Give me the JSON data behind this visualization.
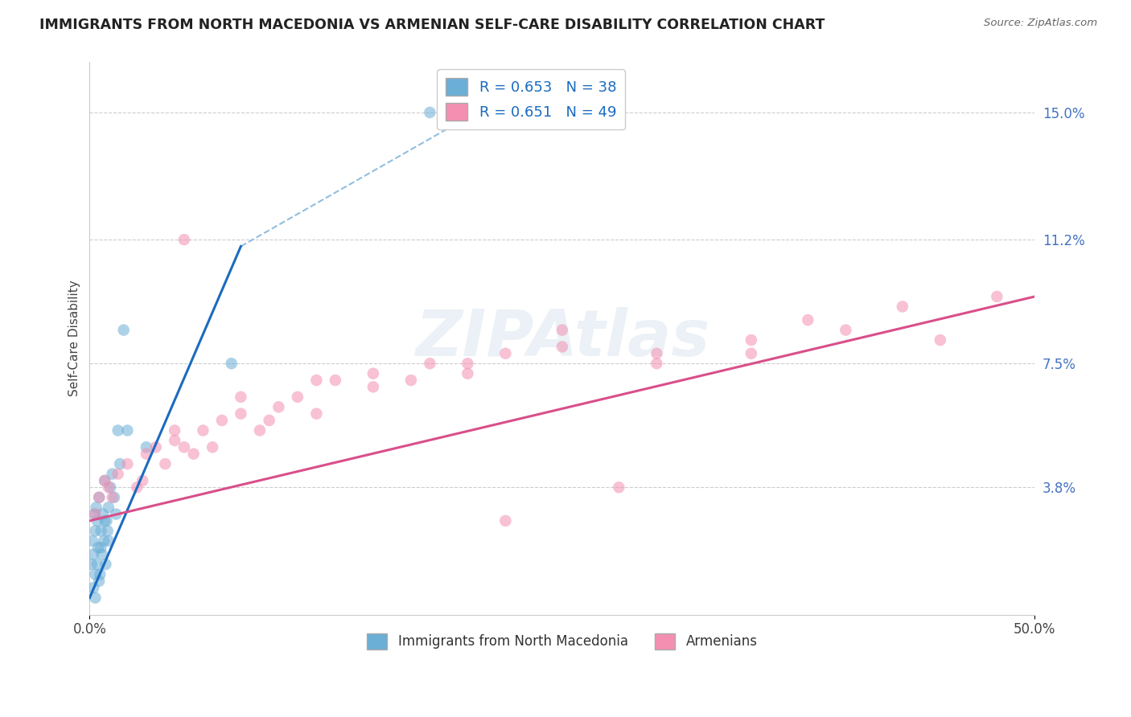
{
  "title": "IMMIGRANTS FROM NORTH MACEDONIA VS ARMENIAN SELF-CARE DISABILITY CORRELATION CHART",
  "source": "Source: ZipAtlas.com",
  "ylabel": "Self-Care Disability",
  "legend_label_1": "Immigrants from North Macedonia",
  "legend_label_2": "Armenians",
  "r1": 0.653,
  "n1": 38,
  "r2": 0.651,
  "n2": 49,
  "color1": "#6baed6",
  "color2": "#f48fb1",
  "line_color1": "#1a6bbf",
  "line_color2": "#d94f8a",
  "xlim": [
    0.0,
    50.0
  ],
  "ylim": [
    0.0,
    16.5
  ],
  "y_ticks_right": [
    3.8,
    7.5,
    11.2,
    15.0
  ],
  "y_tick_labels_right": [
    "3.8%",
    "7.5%",
    "11.2%",
    "15.0%"
  ],
  "background_color": "#ffffff",
  "watermark": "ZIPAtlas",
  "blue_solid_x1": 0.0,
  "blue_solid_y1": 0.5,
  "blue_solid_x2": 8.0,
  "blue_solid_y2": 11.0,
  "blue_dash_x1": 8.0,
  "blue_dash_y1": 11.0,
  "blue_dash_x2": 22.0,
  "blue_dash_y2": 15.5,
  "pink_solid_x1": 0.0,
  "pink_solid_y1": 2.8,
  "pink_solid_x2": 50.0,
  "pink_solid_y2": 9.5,
  "blue_points_x": [
    0.1,
    0.15,
    0.2,
    0.25,
    0.3,
    0.35,
    0.4,
    0.45,
    0.5,
    0.55,
    0.6,
    0.65,
    0.7,
    0.75,
    0.8,
    0.85,
    0.9,
    0.95,
    1.0,
    1.1,
    1.2,
    1.3,
    1.4,
    1.5,
    1.6,
    0.2,
    0.3,
    0.4,
    0.5,
    0.6,
    0.8,
    1.0,
    2.0,
    3.0,
    7.5,
    1.8,
    0.3,
    18.0
  ],
  "blue_points_y": [
    1.5,
    2.2,
    1.8,
    3.0,
    2.5,
    3.2,
    2.8,
    2.0,
    3.5,
    1.2,
    2.5,
    1.8,
    3.0,
    2.2,
    4.0,
    1.5,
    2.8,
    2.5,
    3.2,
    3.8,
    4.2,
    3.5,
    3.0,
    5.5,
    4.5,
    0.8,
    1.2,
    1.5,
    1.0,
    2.0,
    2.8,
    2.2,
    5.5,
    5.0,
    7.5,
    8.5,
    0.5,
    15.0
  ],
  "pink_points_x": [
    0.3,
    0.5,
    0.8,
    1.0,
    1.5,
    2.0,
    2.5,
    3.0,
    3.5,
    4.0,
    4.5,
    5.0,
    5.5,
    6.0,
    7.0,
    8.0,
    9.0,
    10.0,
    11.0,
    12.0,
    13.0,
    15.0,
    17.0,
    18.0,
    20.0,
    22.0,
    25.0,
    28.0,
    30.0,
    35.0,
    38.0,
    40.0,
    43.0,
    45.0,
    48.0,
    1.2,
    2.8,
    4.5,
    6.5,
    9.5,
    15.0,
    20.0,
    25.0,
    30.0,
    5.0,
    8.0,
    12.0,
    22.0,
    35.0
  ],
  "pink_points_y": [
    3.0,
    3.5,
    4.0,
    3.8,
    4.2,
    4.5,
    3.8,
    4.8,
    5.0,
    4.5,
    5.2,
    5.0,
    4.8,
    5.5,
    5.8,
    6.0,
    5.5,
    6.2,
    6.5,
    6.0,
    7.0,
    7.2,
    7.0,
    7.5,
    7.5,
    7.8,
    8.0,
    3.8,
    7.5,
    8.2,
    8.8,
    8.5,
    9.2,
    8.2,
    9.5,
    3.5,
    4.0,
    5.5,
    5.0,
    5.8,
    6.8,
    7.2,
    8.5,
    7.8,
    11.2,
    6.5,
    7.0,
    2.8,
    7.8
  ]
}
